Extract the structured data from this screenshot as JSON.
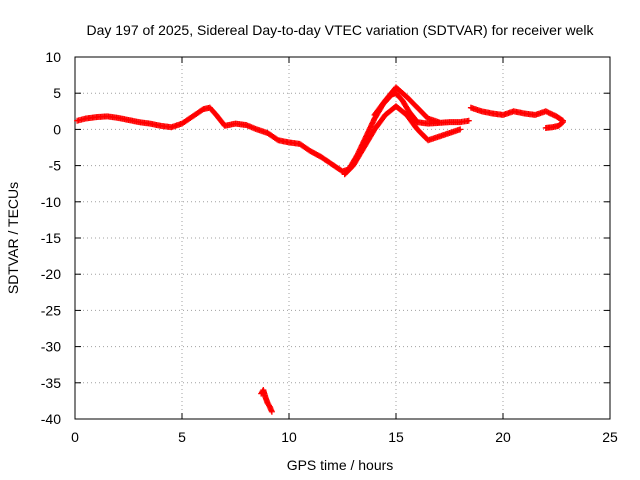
{
  "chart_data": {
    "type": "scatter",
    "title": "Day 197 of 2025, Sidereal Day-to-day VTEC variation (SDTVAR) for receiver welk",
    "xlabel": "GPS time / hours",
    "ylabel": "SDTVAR / TECUs",
    "xlim": [
      0,
      25
    ],
    "ylim": [
      -40,
      10
    ],
    "xticks": [
      0,
      5,
      10,
      15,
      20,
      25
    ],
    "yticks": [
      10,
      5,
      0,
      -5,
      -10,
      -15,
      -20,
      -25,
      -30,
      -35,
      -40
    ],
    "grid": true,
    "marker": "plus",
    "color": "#ff0000",
    "series": [
      {
        "name": "SDTVAR main trace",
        "x": [
          0.1,
          0.5,
          1.0,
          1.5,
          2.0,
          2.5,
          3.0,
          3.5,
          4.0,
          4.5,
          5.0,
          5.5,
          6.0,
          6.3,
          6.6,
          7.0,
          7.5,
          8.0,
          8.5,
          9.0,
          9.5,
          10.0,
          10.5,
          11.0,
          11.5,
          12.0,
          12.5,
          12.8,
          13.2,
          13.6,
          14.0,
          14.4,
          14.8,
          15.0,
          15.3,
          15.6,
          16.0,
          16.5,
          17.0,
          17.5,
          18.0,
          18.4
        ],
        "y": [
          1.2,
          1.5,
          1.7,
          1.8,
          1.6,
          1.3,
          1.0,
          0.8,
          0.5,
          0.3,
          0.8,
          1.8,
          2.8,
          3.0,
          2.0,
          0.5,
          0.8,
          0.6,
          0.0,
          -0.5,
          -1.5,
          -1.8,
          -2.0,
          -3.0,
          -3.8,
          -4.8,
          -5.8,
          -5.5,
          -3.5,
          -1.0,
          1.5,
          3.5,
          4.8,
          5.0,
          4.0,
          2.5,
          1.0,
          0.8,
          0.9,
          1.0,
          1.0,
          1.2
        ]
      },
      {
        "name": "SDTVAR lower branch",
        "x": [
          12.6,
          13.0,
          13.5,
          14.0,
          14.5,
          15.0,
          15.5,
          16.0,
          16.5,
          17.0,
          17.5,
          18.0
        ],
        "y": [
          -6.2,
          -5.0,
          -2.5,
          0.0,
          2.0,
          3.2,
          2.0,
          0.0,
          -1.5,
          -1.0,
          -0.5,
          0.0
        ]
      },
      {
        "name": "SDTVAR upper branch",
        "x": [
          14.0,
          14.5,
          15.0,
          15.5,
          16.0,
          16.5,
          17.0
        ],
        "y": [
          2.0,
          4.0,
          5.8,
          4.5,
          3.0,
          1.5,
          1.0
        ]
      },
      {
        "name": "SDTVAR late segment",
        "x": [
          18.5,
          19.0,
          19.5,
          20.0,
          20.5,
          21.0,
          21.5,
          22.0,
          22.5,
          22.8
        ],
        "y": [
          3.0,
          2.5,
          2.2,
          2.0,
          2.5,
          2.2,
          2.0,
          2.5,
          1.8,
          1.2
        ]
      },
      {
        "name": "SDTVAR late dip",
        "x": [
          22.0,
          22.3,
          22.6,
          22.8
        ],
        "y": [
          0.2,
          0.3,
          0.5,
          1.0
        ]
      },
      {
        "name": "SDTVAR outlier cluster",
        "x": [
          8.7,
          8.8,
          8.9,
          9.0,
          9.1,
          9.2
        ],
        "y": [
          -36.5,
          -36.0,
          -37.0,
          -37.8,
          -38.3,
          -39.0
        ]
      }
    ]
  }
}
